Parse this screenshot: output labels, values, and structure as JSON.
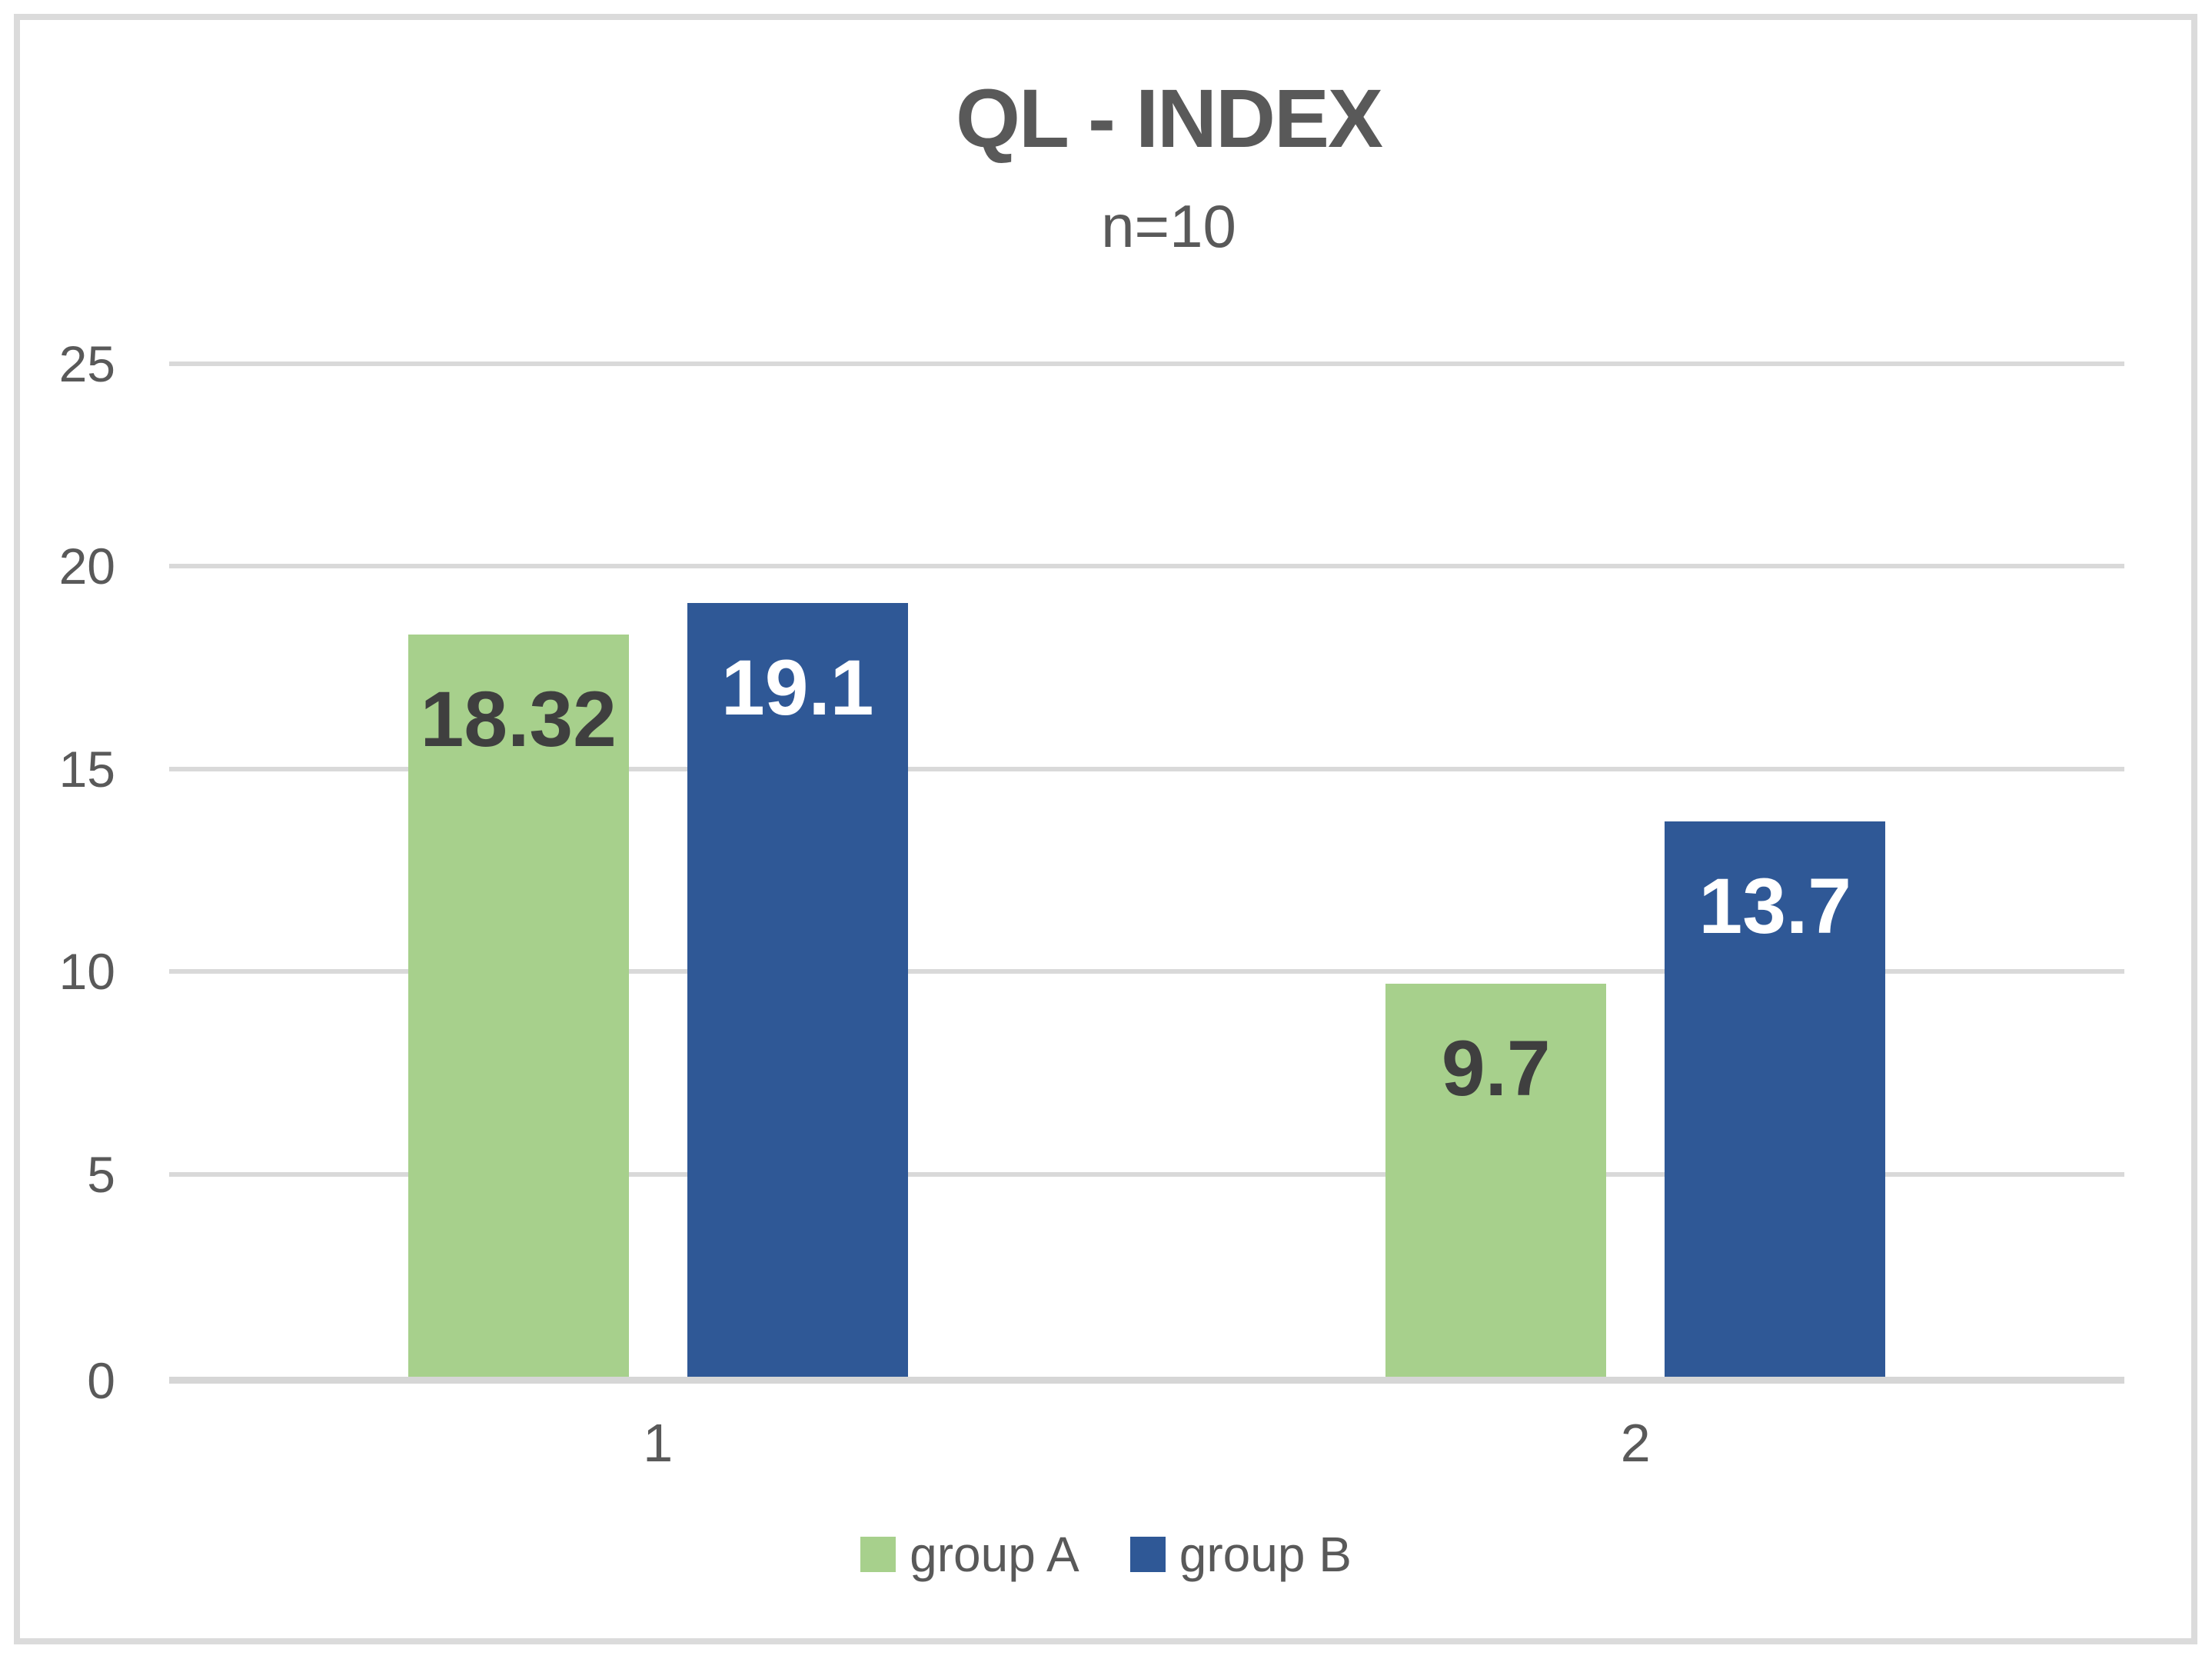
{
  "chart_data": {
    "type": "bar",
    "title": "QL - INDEX",
    "subtitle": "n=10",
    "categories": [
      "1",
      "2"
    ],
    "series": [
      {
        "name": "group A",
        "color": "#A7D08C",
        "label_color": "#3F3F3F",
        "values": [
          18.32,
          9.7
        ],
        "value_labels": [
          "18.32",
          "9.7"
        ]
      },
      {
        "name": "group B",
        "color": "#2F5896",
        "label_color": "#FFFFFF",
        "values": [
          19.1,
          13.7
        ],
        "value_labels": [
          "19.1",
          "13.7"
        ]
      }
    ],
    "y_axis": {
      "min": 0,
      "max": 25,
      "step": 5,
      "tick_labels": [
        "0",
        "5",
        "10",
        "15",
        "20",
        "25"
      ]
    },
    "grid": true,
    "legend_position": "bottom",
    "colors": {
      "text": "#595959",
      "gridline": "#D9D9D9",
      "baseline": "#D6D6D6",
      "frame": "#DBDBDB",
      "background": "#FFFFFF"
    }
  }
}
